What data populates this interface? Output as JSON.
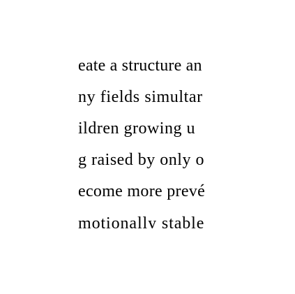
{
  "document": {
    "lines": [
      "eate a structure an",
      "ny fields simultar",
      "ildren growing u",
      "g raised by only o",
      "ecome more prevé",
      "motionally stable "
    ]
  }
}
